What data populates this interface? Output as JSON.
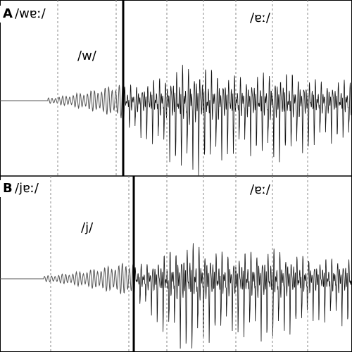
{
  "panels": [
    {
      "letter": "A",
      "word": "/wɐː/",
      "consonant": "/w/",
      "vowel": "/ɐː/"
    },
    {
      "letter": "B",
      "word": "/jɐː/",
      "consonant": "/j/",
      "vowel": "/ɐː/"
    }
  ]
}
